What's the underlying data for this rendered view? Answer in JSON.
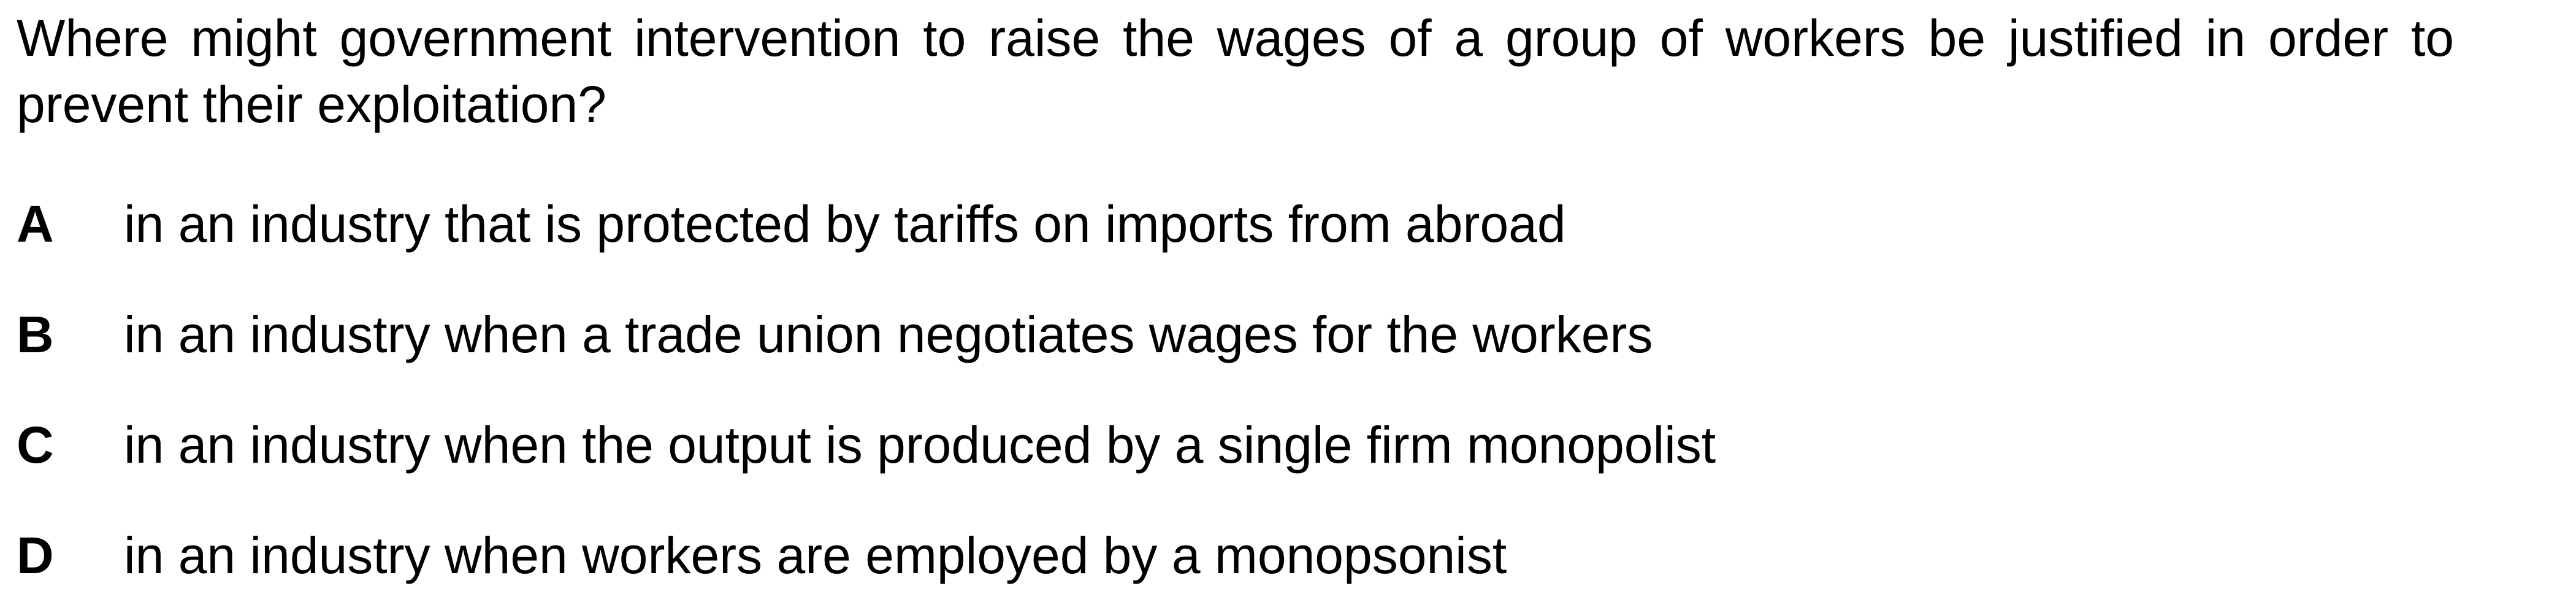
{
  "question": {
    "text": "Where might government intervention to raise the wages of a group of workers be justified in order to prevent their exploitation?"
  },
  "options": [
    {
      "letter": "A",
      "text": "in an industry that is protected by tariffs on imports from abroad"
    },
    {
      "letter": "B",
      "text": "in an industry when a trade union negotiates wages for the workers"
    },
    {
      "letter": "C",
      "text": "in an industry when the output is produced by a single firm monopolist"
    },
    {
      "letter": "D",
      "text": "in an industry when workers are employed by a monopsonist"
    }
  ]
}
